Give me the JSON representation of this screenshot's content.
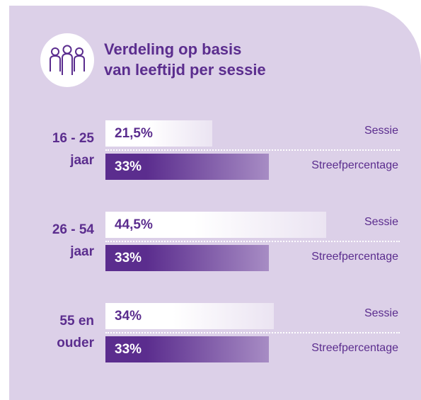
{
  "chart_data": {
    "type": "bar",
    "title": "Verdeling op basis\nvan leeftijd per sessie",
    "categories": [
      "16 - 25\njaar",
      "26 - 54\njaar",
      "55 en\nouder"
    ],
    "series": [
      {
        "name": "Sessie",
        "color": "#ffffff",
        "values": [
          21.5,
          44.5,
          34
        ],
        "value_labels": [
          "21,5%",
          "44,5%",
          "34%"
        ]
      },
      {
        "name": "Streefpercentage",
        "color": "#5b2d8e",
        "values": [
          33,
          33,
          33
        ],
        "value_labels": [
          "33%",
          "33%",
          "33%"
        ]
      }
    ]
  }
}
